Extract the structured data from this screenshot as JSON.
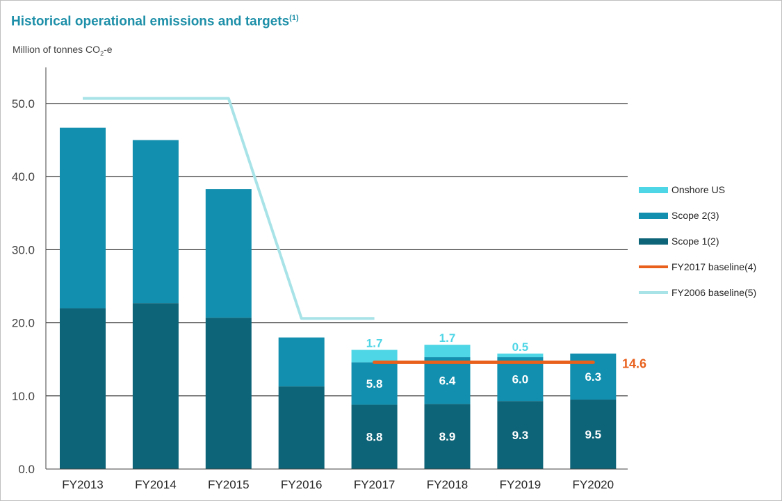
{
  "title": "Historical operational emissions and targets",
  "title_note": "(1)",
  "unit_prefix": "Million of tonnes CO",
  "unit_sub": "2",
  "unit_suffix": "-e",
  "colors": {
    "onshore": "#4fd6e6",
    "scope2": "#128fae",
    "scope1": "#0d6377",
    "baseline2017": "#e8601c",
    "baseline2006": "#a8e3e8",
    "title": "#1d8fa8"
  },
  "chart_data": {
    "type": "bar",
    "stacked": true,
    "categories": [
      "FY2013",
      "FY2014",
      "FY2015",
      "FY2016",
      "FY2017",
      "FY2018",
      "FY2019",
      "FY2020"
    ],
    "series": [
      {
        "name": "Scope 1(2)",
        "values": [
          22.0,
          22.7,
          20.7,
          11.3,
          8.8,
          8.9,
          9.3,
          9.5
        ],
        "labels": [
          null,
          null,
          null,
          null,
          "8.8",
          "8.9",
          "9.3",
          "9.5"
        ]
      },
      {
        "name": "Scope 2(3)",
        "values": [
          24.7,
          22.3,
          17.6,
          6.7,
          5.8,
          6.4,
          6.0,
          6.3
        ],
        "labels": [
          null,
          null,
          null,
          null,
          "5.8",
          "6.4",
          "6.0",
          "6.3"
        ]
      },
      {
        "name": "Onshore US",
        "values": [
          0,
          0,
          0,
          0,
          1.7,
          1.7,
          0.5,
          0
        ],
        "labels": [
          null,
          null,
          null,
          null,
          "1.7",
          "1.7",
          "0.5",
          null
        ]
      }
    ],
    "lines": [
      {
        "name": "FY2017 baseline(4)",
        "start": "FY2017",
        "end": "FY2020",
        "value": 14.6,
        "label": "14.6"
      },
      {
        "name": "FY2006 baseline(5)",
        "points": [
          [
            "FY2013",
            50.7
          ],
          [
            "FY2015",
            50.7
          ],
          [
            "FY2016",
            20.6
          ],
          [
            "FY2017",
            20.6
          ]
        ]
      }
    ],
    "legend": [
      "Onshore US",
      "Scope 2(3)",
      "Scope 1(2)",
      "FY2017 baseline(4)",
      "FY2006 baseline(5)"
    ],
    "legend_position": "right",
    "yticks": [
      "0.0",
      "10.0",
      "20.0",
      "30.0",
      "40.0",
      "50.0"
    ],
    "ylim": [
      0,
      55
    ],
    "grid": true
  }
}
